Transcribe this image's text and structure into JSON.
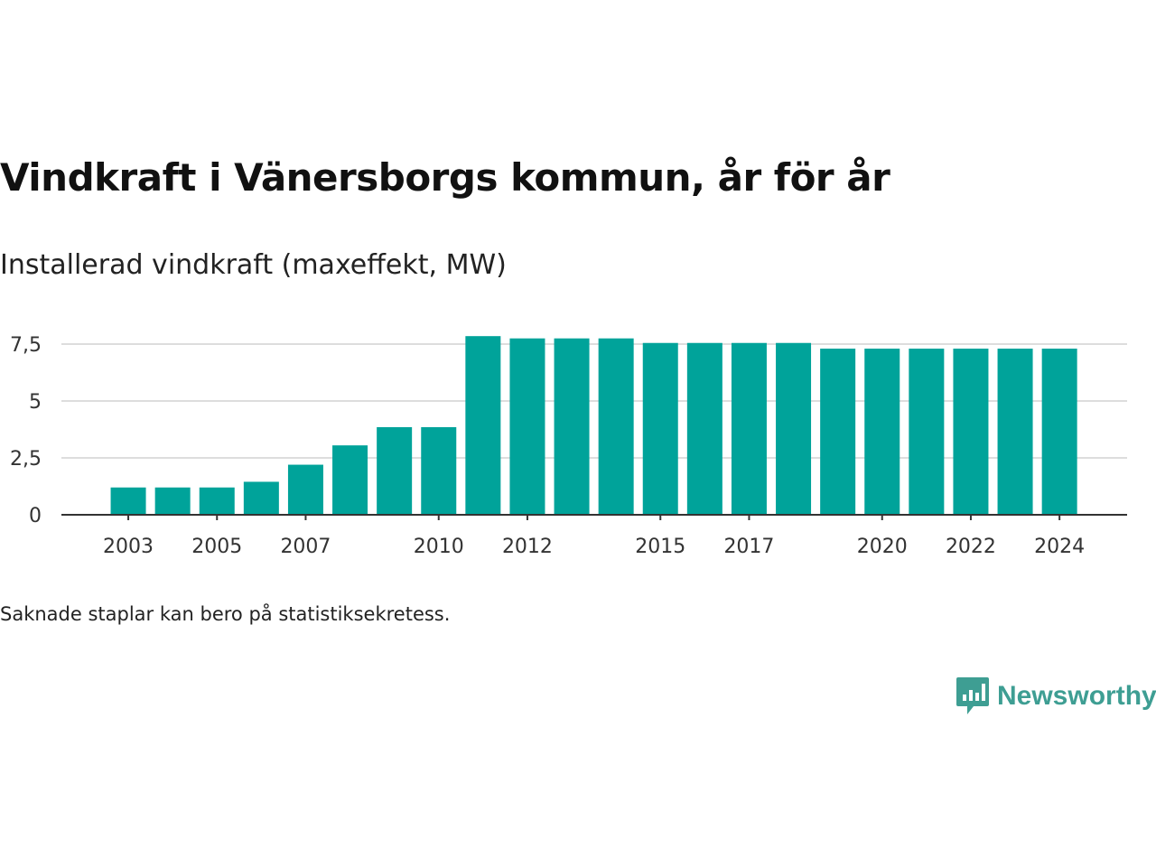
{
  "title": "Vindkraft i Vänersborgs kommun, år för år",
  "subtitle": "Installerad vindkraft (maxeffekt, MW)",
  "note": "Saknade staplar kan bero på statistiksekretess.",
  "logo": {
    "text": "Newsworthy",
    "icon": "bar-chart-speech-bubble-icon"
  },
  "colors": {
    "bar": "#00a39a",
    "grid": "#dddddd",
    "axis": "#333333",
    "logo": "#3e9e93"
  },
  "chart_data": {
    "type": "bar",
    "title": "Vindkraft i Vänersborgs kommun, år för år",
    "ylabel": "Installerad vindkraft (maxeffekt, MW)",
    "xlabel": "",
    "categories": [
      2003,
      2004,
      2005,
      2006,
      2007,
      2008,
      2009,
      2010,
      2011,
      2012,
      2013,
      2014,
      2015,
      2016,
      2017,
      2018,
      2019,
      2020,
      2021,
      2022,
      2023,
      2024
    ],
    "values": [
      1.2,
      1.2,
      1.2,
      1.45,
      2.2,
      3.05,
      3.85,
      3.85,
      7.85,
      7.75,
      7.75,
      7.75,
      7.55,
      7.55,
      7.55,
      7.55,
      7.3,
      7.3,
      7.3,
      7.3,
      7.3,
      7.3
    ],
    "ylim": [
      0,
      9
    ],
    "yticks": [
      0,
      2.5,
      5,
      7.5
    ],
    "ytick_labels": [
      "0",
      "2,5",
      "5",
      "7,5"
    ],
    "xtick_labels": [
      "2003",
      "2005",
      "2007",
      "2010",
      "2012",
      "2015",
      "2017",
      "2020",
      "2022",
      "2024"
    ],
    "grid": true,
    "legend": "none"
  }
}
